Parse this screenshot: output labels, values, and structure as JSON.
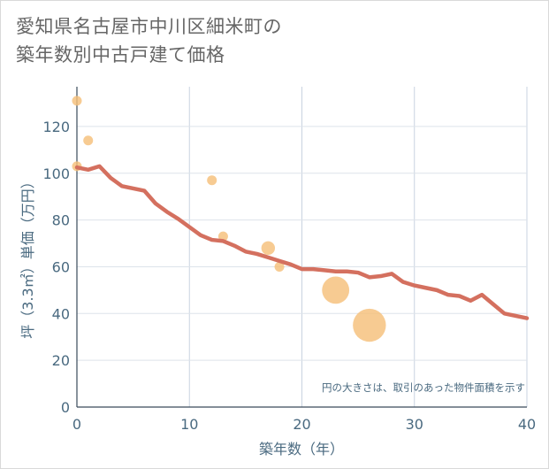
{
  "title_line1": "愛知県名古屋市中川区細米町の",
  "title_line2": "築年数別中古戸建て価格",
  "chart_data": {
    "type": "scatter+line",
    "xlabel": "築年数（年）",
    "ylabel": "坪（3.3㎡）単価（万円）",
    "xlim": [
      0,
      40
    ],
    "ylim": [
      0,
      137
    ],
    "xticks": [
      0,
      10,
      20,
      30,
      40
    ],
    "yticks": [
      0,
      20,
      40,
      60,
      80,
      100,
      120
    ],
    "grid": true,
    "note": "円の大きさは、取引のあった物件面積を示す",
    "scatter_color": "#f5c07a",
    "line_color": "#d4705f",
    "scatter": [
      {
        "x": 0,
        "y": 131,
        "size": 1
      },
      {
        "x": 0,
        "y": 103,
        "size": 1
      },
      {
        "x": 1,
        "y": 114,
        "size": 1
      },
      {
        "x": 12,
        "y": 97,
        "size": 1
      },
      {
        "x": 13,
        "y": 73,
        "size": 1
      },
      {
        "x": 17,
        "y": 68,
        "size": 1.4
      },
      {
        "x": 18,
        "y": 60,
        "size": 1
      },
      {
        "x": 23,
        "y": 50,
        "size": 2.8
      },
      {
        "x": 26,
        "y": 35,
        "size": 3.4
      }
    ],
    "line": {
      "x": [
        0,
        1,
        2,
        3,
        4,
        5,
        6,
        7,
        8,
        9,
        10,
        11,
        12,
        13,
        14,
        15,
        16,
        17,
        18,
        19,
        20,
        21,
        22,
        23,
        24,
        25,
        26,
        27,
        28,
        29,
        30,
        31,
        32,
        33,
        34,
        35,
        36,
        37,
        38,
        39,
        40
      ],
      "y": [
        102.5,
        101.5,
        103,
        98,
        94.5,
        93.5,
        92.5,
        87,
        83.5,
        80.5,
        77,
        73.5,
        71.5,
        71,
        69,
        66.5,
        65.5,
        64,
        62.5,
        61,
        59,
        59,
        58.5,
        58,
        58,
        57.5,
        55.5,
        56,
        57,
        53.5,
        52,
        51,
        50,
        48,
        47.5,
        45.5,
        48,
        44,
        40,
        39,
        38
      ]
    }
  }
}
